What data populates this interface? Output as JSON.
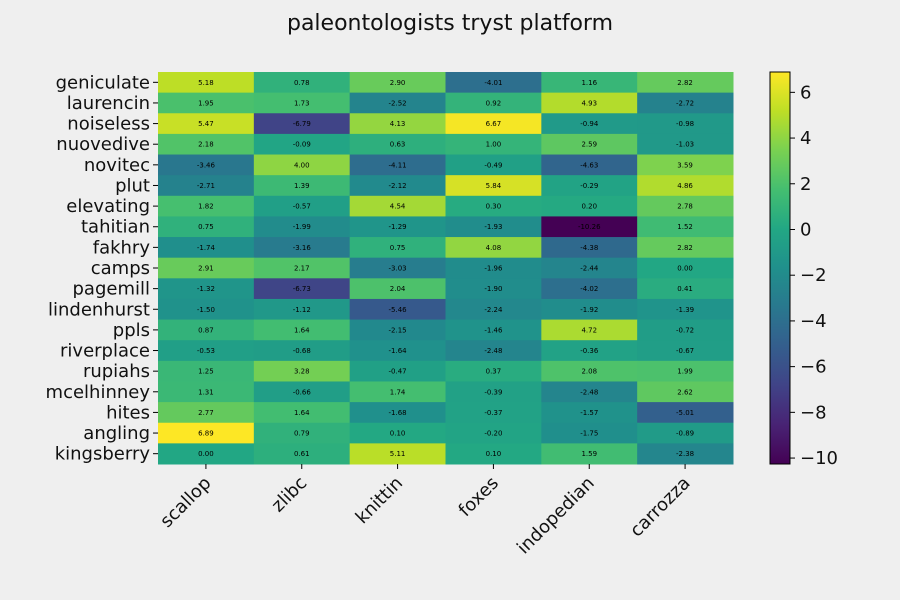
{
  "chart_data": {
    "type": "heatmap",
    "title": "paleontologists tryst platform",
    "rows": [
      "geniculate",
      "laurencin",
      "noiseless",
      "nuovedive",
      "novitec",
      "plut",
      "elevating",
      "tahitian",
      "fakhry",
      "camps",
      "pagemill",
      "lindenhurst",
      "ppls",
      "riverplace",
      "rupiahs",
      "mcelhinney",
      "hites",
      "angling",
      "kingsberry"
    ],
    "columns": [
      "scallop",
      "zlibc",
      "knittin",
      "foxes",
      "indopedian",
      "carrozza"
    ],
    "values": [
      [
        5.18,
        0.78,
        2.9,
        -4.01,
        1.16,
        2.82
      ],
      [
        1.95,
        1.73,
        -2.52,
        0.92,
        4.93,
        -2.72
      ],
      [
        5.47,
        -6.79,
        4.13,
        6.67,
        -0.94,
        -0.98
      ],
      [
        2.18,
        -0.09,
        0.63,
        1.0,
        2.59,
        -1.03
      ],
      [
        -3.46,
        4.0,
        -4.11,
        -0.49,
        -4.63,
        3.59
      ],
      [
        -2.71,
        1.39,
        -2.12,
        5.84,
        -0.29,
        4.86
      ],
      [
        1.82,
        -0.57,
        4.54,
        0.3,
        0.2,
        2.78
      ],
      [
        0.75,
        -1.99,
        -1.29,
        -1.93,
        -10.26,
        1.52
      ],
      [
        -1.74,
        -3.16,
        0.75,
        4.08,
        -4.38,
        2.82
      ],
      [
        2.91,
        2.17,
        -3.03,
        -1.96,
        -2.44,
        0.0
      ],
      [
        -1.32,
        -6.73,
        2.04,
        -1.9,
        -4.02,
        0.41
      ],
      [
        -1.5,
        -1.12,
        -5.46,
        -2.24,
        -1.92,
        -1.39
      ],
      [
        0.87,
        1.64,
        -2.15,
        -1.46,
        4.72,
        -0.72
      ],
      [
        -0.53,
        -0.68,
        -1.64,
        -2.48,
        -0.36,
        -0.67
      ],
      [
        1.25,
        3.28,
        -0.47,
        0.37,
        2.08,
        1.99
      ],
      [
        1.31,
        -0.66,
        1.74,
        -0.39,
        -2.48,
        2.62
      ],
      [
        2.77,
        1.64,
        -1.68,
        -0.37,
        -1.57,
        -5.01
      ],
      [
        6.89,
        0.79,
        0.1,
        -0.2,
        -1.75,
        -0.89
      ],
      [
        0.0,
        0.61,
        5.11,
        0.1,
        1.59,
        -2.38
      ]
    ],
    "colormap": "viridis",
    "color_range": [
      -10.26,
      6.89
    ],
    "colorbar_ticks": [
      6,
      4,
      2,
      0,
      -2,
      -4,
      -6,
      -8,
      -10
    ],
    "colorbar_tick_labels": [
      "6",
      "4",
      "2",
      "0",
      "−2",
      "−4",
      "−6",
      "−8",
      "−10"
    ],
    "legend": "colorbar-right",
    "grid": false
  }
}
